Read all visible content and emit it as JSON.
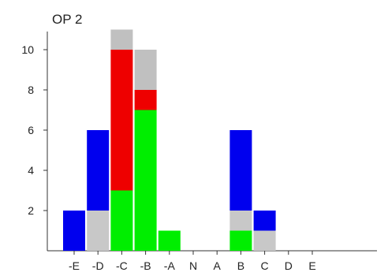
{
  "chart_data": {
    "type": "bar",
    "stacked": true,
    "title": "OP 2",
    "xlabel": "",
    "ylabel": "",
    "categories": [
      "-E",
      "-D",
      "-C",
      "-B",
      "-A",
      "N",
      "A",
      "B",
      "C",
      "D",
      "E"
    ],
    "ylim": [
      0,
      11
    ],
    "yticks": [
      2,
      4,
      6,
      8,
      10
    ],
    "grid": false,
    "legend": "none",
    "series": [
      {
        "color": "#00ee00",
        "values": [
          0,
          0,
          3,
          7,
          1,
          0,
          0,
          1,
          0,
          0,
          0
        ]
      },
      {
        "color": "#c8c8c8",
        "values": [
          0,
          2,
          0,
          0,
          0,
          0,
          0,
          1,
          1,
          0,
          0
        ]
      },
      {
        "color": "#0000ee",
        "values": [
          2,
          4,
          0,
          0,
          0,
          0,
          0,
          4,
          1,
          0,
          0
        ]
      },
      {
        "color": "#ee0000",
        "values": [
          0,
          0,
          7,
          1,
          0,
          0,
          0,
          0,
          0,
          0,
          0
        ]
      },
      {
        "color": "#c0c0c0",
        "values": [
          0,
          0,
          1,
          2,
          0,
          0,
          0,
          0,
          0,
          0,
          0
        ]
      }
    ]
  }
}
